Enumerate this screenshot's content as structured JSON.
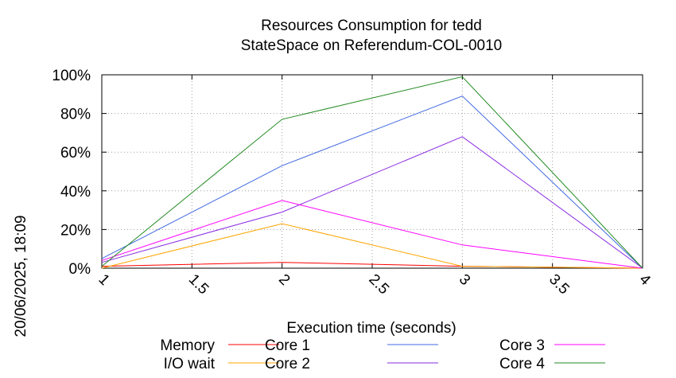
{
  "chart_data": {
    "type": "line",
    "title": "Resources Consumption for tedd",
    "subtitle": "StateSpace on Referendum-COL-0010",
    "xlabel": "Execution time (seconds)",
    "ylabel": "",
    "side_label": "20/06/2025, 18:09",
    "xlim": [
      1,
      4
    ],
    "ylim": [
      0,
      100
    ],
    "x_ticks": [
      {
        "value": 1,
        "label": "1"
      },
      {
        "value": 1.5,
        "label": "1.5"
      },
      {
        "value": 2,
        "label": "2"
      },
      {
        "value": 2.5,
        "label": "2.5"
      },
      {
        "value": 3,
        "label": "3"
      },
      {
        "value": 3.5,
        "label": "3.5"
      },
      {
        "value": 4,
        "label": "4"
      }
    ],
    "y_ticks": [
      {
        "value": 0,
        "label": "0%"
      },
      {
        "value": 20,
        "label": "20%"
      },
      {
        "value": 40,
        "label": "40%"
      },
      {
        "value": 60,
        "label": "60%"
      },
      {
        "value": 80,
        "label": "80%"
      },
      {
        "value": 100,
        "label": "100%"
      }
    ],
    "grid": true,
    "legend_position": "bottom",
    "x": [
      1,
      2,
      3,
      4
    ],
    "series": [
      {
        "name": "Memory",
        "color": "#ff0000",
        "values": [
          1,
          3,
          1,
          0
        ]
      },
      {
        "name": "I/O wait",
        "color": "#ffa500",
        "values": [
          0,
          23,
          1,
          0
        ]
      },
      {
        "name": "Core 1",
        "color": "#4169e1",
        "values": [
          5,
          53,
          89,
          0
        ]
      },
      {
        "name": "Core 2",
        "color": "#8a2be2",
        "values": [
          3,
          29,
          68,
          0
        ]
      },
      {
        "name": "Core 3",
        "color": "#ff00ff",
        "values": [
          4,
          35,
          12,
          0
        ]
      },
      {
        "name": "Core 4",
        "color": "#228b22",
        "values": [
          1,
          77,
          99,
          0
        ]
      }
    ]
  }
}
